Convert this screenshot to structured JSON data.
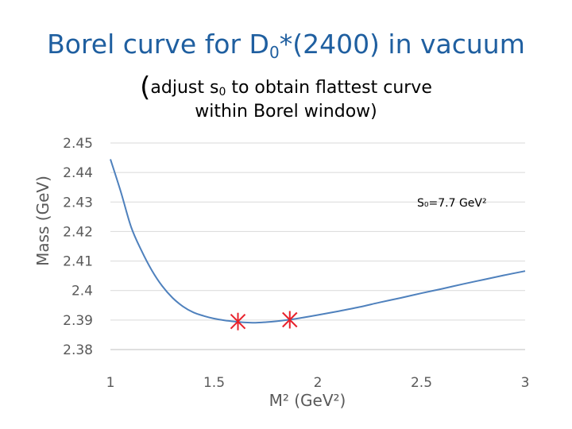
{
  "title": {
    "main": "Borel curve for D",
    "sub": "0",
    "rest": "*(2400) in vacuum"
  },
  "subtitle": {
    "open_paren": "(",
    "line1_a": "adjust s",
    "line1_sub": "0",
    "line1_b": " to obtain flattest curve",
    "line2": "within Borel window",
    "close_paren": ")"
  },
  "chart_data": {
    "type": "line",
    "xlabel": "M² (GeV²)",
    "ylabel": "Mass (GeV)",
    "xlim": [
      1,
      3
    ],
    "ylim": [
      2.38,
      2.45
    ],
    "x_ticks": [
      "1",
      "1.5",
      "2",
      "2.5",
      "3"
    ],
    "y_ticks": [
      "2.38",
      "2.39",
      "2.4",
      "2.41",
      "2.42",
      "2.43",
      "2.44",
      "2.45"
    ],
    "grid": true,
    "annotation": "S₀=7.7 GeV²",
    "line_color": "#4f81bd",
    "marker_color": "#e8202a",
    "series": [
      {
        "x": [
          1.0,
          1.05,
          1.1,
          1.15,
          1.2,
          1.25,
          1.3,
          1.35,
          1.4,
          1.45,
          1.5,
          1.55,
          1.6,
          1.65,
          1.7,
          1.75,
          1.8,
          1.85,
          1.9,
          2.0,
          2.1,
          2.2,
          2.3,
          2.4,
          2.5,
          2.6,
          2.7,
          2.8,
          2.9,
          3.0
        ],
        "y": [
          2.4445,
          2.4335,
          2.4215,
          2.4135,
          2.4068,
          2.4015,
          2.3975,
          2.3946,
          2.3926,
          2.3914,
          2.3905,
          2.3899,
          2.3895,
          2.3892,
          2.3891,
          2.3893,
          2.3896,
          2.39,
          2.3905,
          2.3917,
          2.393,
          2.3944,
          2.396,
          2.3975,
          2.3991,
          2.4006,
          2.4022,
          2.4037,
          2.4052,
          2.4066
        ]
      }
    ],
    "markers": [
      {
        "x": 1.615,
        "y": 2.3895
      },
      {
        "x": 1.865,
        "y": 2.3901
      }
    ]
  }
}
